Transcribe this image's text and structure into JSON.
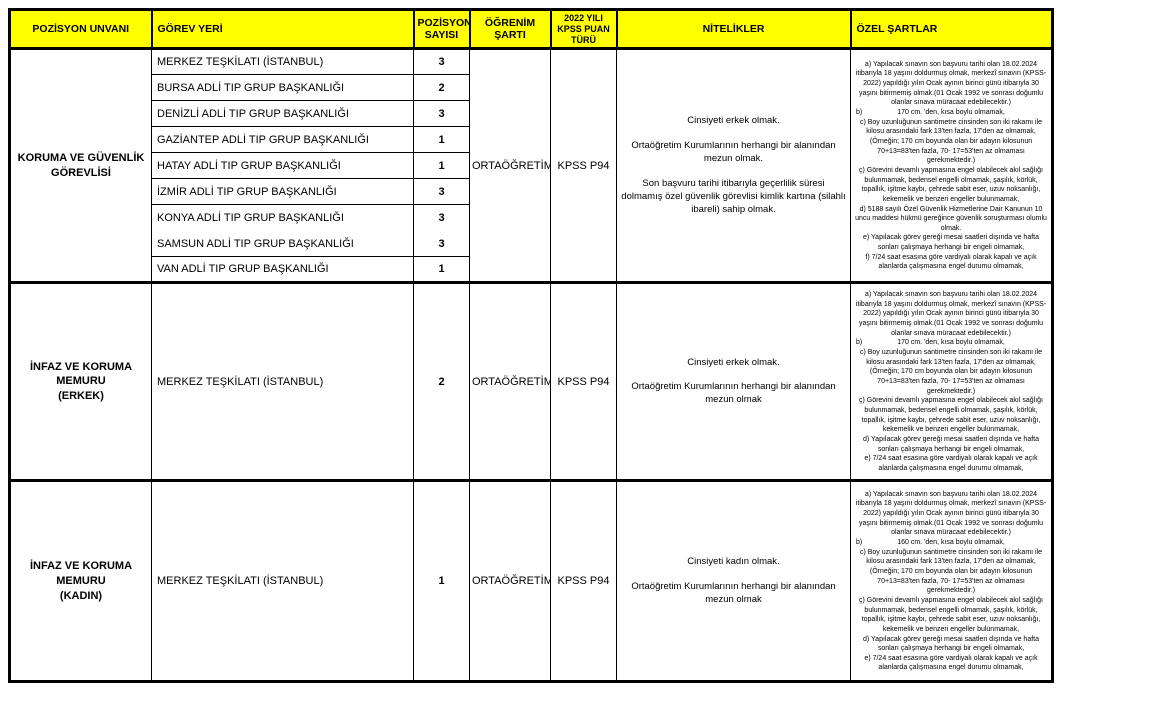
{
  "table": {
    "headers": [
      "POZİSYON UNVANI",
      "GÖREV YERİ",
      "POZİSYON SAYISI",
      "ÖĞRENİM ŞARTI",
      "2022 YILI KPSS PUAN TÜRÜ",
      "NİTELİKLER",
      "ÖZEL ŞARTLAR"
    ],
    "header_bg_color": "#ffff00",
    "groups": [
      {
        "title": "KORUMA VE GÜVENLİK GÖREVLİSİ",
        "locations": [
          {
            "name": "MERKEZ TEŞKİLATI (İSTANBUL)",
            "count": "3"
          },
          {
            "name": "BURSA ADLİ TIP GRUP BAŞKANLIĞI",
            "count": "2"
          },
          {
            "name": "DENİZLİ ADLİ TIP GRUP BAŞKANLIĞI",
            "count": "3"
          },
          {
            "name": "GAZİANTEP ADLİ TIP GRUP BAŞKANLIĞI",
            "count": "1"
          },
          {
            "name": "HATAY ADLİ TIP GRUP BAŞKANLIĞI",
            "count": "1"
          },
          {
            "name": "İZMİR ADLİ TIP GRUP BAŞKANLIĞI",
            "count": "3"
          },
          {
            "name": "KONYA ADLİ TIP GRUP BAŞKANLIĞI",
            "count": "3"
          },
          {
            "name": "SAMSUN ADLİ TIP GRUP BAŞKANLIĞI",
            "count": "3"
          },
          {
            "name": "VAN ADLİ TIP GRUP BAŞKANLIĞI",
            "count": "1"
          }
        ],
        "education": "ORTAÖĞRETİM",
        "kpss": "KPSS P94",
        "qualifications": [
          "Cinsiyeti erkek olmak.",
          "Ortaöğretim Kurumlarının herhangi bir alanından mezun olmak.",
          "Son başvuru tarihi itibarıyla geçerlilik süresi dolmamış özel güvenlik görevlisi kimlik kartına (silahlı ibareli) sahip olmak."
        ],
        "special": {
          "a": "a) Yapılacak sınavın son başvuru tarihi olan 18.02.2024 itibarıyla 18 yaşını doldurmuş olmak, merkezî sınavın (KPSS-2022) yapıldığı yılın Ocak ayının birinci günü itibarıyla 30 yaşını bitirmemiş olmak.(01 Ocak 1992 ve sonrası doğumlu olanlar sınava müracaat edebilecektir.)",
          "b_marker": "b)",
          "b": "170 cm. 'den, kısa boylu olmamak,",
          "c": "c) Boy uzunluğunun santimetre cinsinden son iki rakamı ile kilosu arasındaki fark 13'ten fazla, 17'den az olmamak, (Örneğin; 170 cm boyunda olan bir adayın kilosunun 70+13=83'ten fazla, 70- 17=53'ten az olmaması gerekmektedir.)",
          "cc": "ç) Görevini devamlı yapmasına engel olabilecek akıl sağlığı bulunmamak, bedensel engelli olmamak, şaşılık, körlük, topallık, işitme kaybı, çehrede sabit eser, uzuv noksanlığı, kekemelik ve benzeri engeller bulunmamak,",
          "d": "d) 5188 sayılı Özel Güvenlik Hizmetlerine Dair Kanunun 10 uncu maddesi hükmü gereğince güvenlik soruşturması olumlu olmak.",
          "e": "e) Yapılacak görev gereği mesai saatleri dışında ve hafta sonları çalışmaya herhangi bir engeli olmamak,",
          "f": "f) 7/24 saat esasına göre vardiyalı olarak kapalı ve açık alanlarda çalışmasına engel durumu olmamak,"
        }
      },
      {
        "title": "İNFAZ VE KORUMA MEMURU\n(ERKEK)",
        "locations": [
          {
            "name": "MERKEZ TEŞKİLATI (İSTANBUL)",
            "count": "2"
          }
        ],
        "education": "ORTAÖĞRETİM",
        "kpss": "KPSS P94",
        "qualifications": [
          "Cinsiyeti erkek olmak.",
          "Ortaöğretim Kurumlarının herhangi bir alanından mezun olmak"
        ],
        "special": {
          "a": "a) Yapılacak sınavın son başvuru tarihi olan 18.02.2024 itibarıyla 18 yaşını doldurmuş olmak, merkezî sınavın (KPSS-2022) yapıldığı yılın Ocak ayının birinci günü itibarıyla 30 yaşını bitirmemiş olmak.(01 Ocak 1992 ve sonrası doğumlu olanlar sınava müracaat edebilecektir.)",
          "b_marker": "b)",
          "b": "170 cm. 'den, kısa boylu olmamak,",
          "c": "c) Boy uzunluğunun santimetre cinsinden son iki rakamı ile kilosu arasındaki fark 13'ten fazla, 17'den az olmamak, (Örneğin; 170 cm boyunda olan bir adayın kilosunun 70+13=83'ten fazla, 70- 17=53'ten az olmaması gerekmektedir.)",
          "cc": "ç) Görevini devamlı yapmasına engel olabilecek akıl sağlığı bulunmamak, bedensel engelli olmamak, şaşılık, körlük, topallık, işitme kaybı, çehrede sabit eser, uzuv noksanlığı, kekemelik ve benzeri engeller bulunmamak,",
          "d": "d) Yapılacak görev gereği mesai saatleri dışında ve hafta sonları çalışmaya herhangi bir engeli olmamak,",
          "e": "e) 7/24 saat esasına göre vardiyalı olarak kapalı ve açık alanlarda çalışmasına engel durumu olmamak,"
        }
      },
      {
        "title": "İNFAZ VE KORUMA MEMURU\n(KADIN)",
        "locations": [
          {
            "name": "MERKEZ TEŞKİLATI (İSTANBUL)",
            "count": "1"
          }
        ],
        "education": "ORTAÖĞRETİM",
        "kpss": "KPSS P94",
        "qualifications": [
          "Cinsiyeti kadın olmak.",
          "Ortaöğretim Kurumlarının herhangi bir alanından mezun olmak"
        ],
        "special": {
          "a": "a) Yapılacak sınavın son başvuru tarihi olan 18.02.2024 itibarıyla 18 yaşını doldurmuş olmak, merkezî sınavın (KPSS-2022) yapıldığı yılın Ocak ayının birinci günü itibarıyla 30 yaşını bitirmemiş olmak.(01 Ocak 1992 ve sonrası doğumlu olanlar sınava müracaat edebilecektir.)",
          "b_marker": "b)",
          "b": "160 cm. 'den, kısa boylu olmamak,",
          "c": "c) Boy uzunluğunun santimetre cinsinden son iki rakamı ile kilosu arasındaki fark 13'ten fazla, 17'den az olmamak, (Örneğin; 170 cm boyunda olan bir adayın kilosunun 70+13=83'ten fazla, 70- 17=53'ten az olmaması gerekmektedir.)",
          "cc": "ç) Görevini devamlı yapmasına engel olabilecek akıl sağlığı bulunmamak, bedensel engelli olmamak, şaşılık, körlük, topallık, işitme kaybı, çehrede sabit eser, uzuv noksanlığı, kekemelik ve benzeri engeller bulunmamak,",
          "d": "d) Yapılacak görev gereği mesai saatleri dışında ve hafta sonları çalışmaya herhangi bir engeli olmamak,",
          "e": "e) 7/24 saat esasına göre vardiyalı olarak kapalı ve açık alanlarda çalışmasına engel durumu olmamak,"
        }
      }
    ]
  }
}
